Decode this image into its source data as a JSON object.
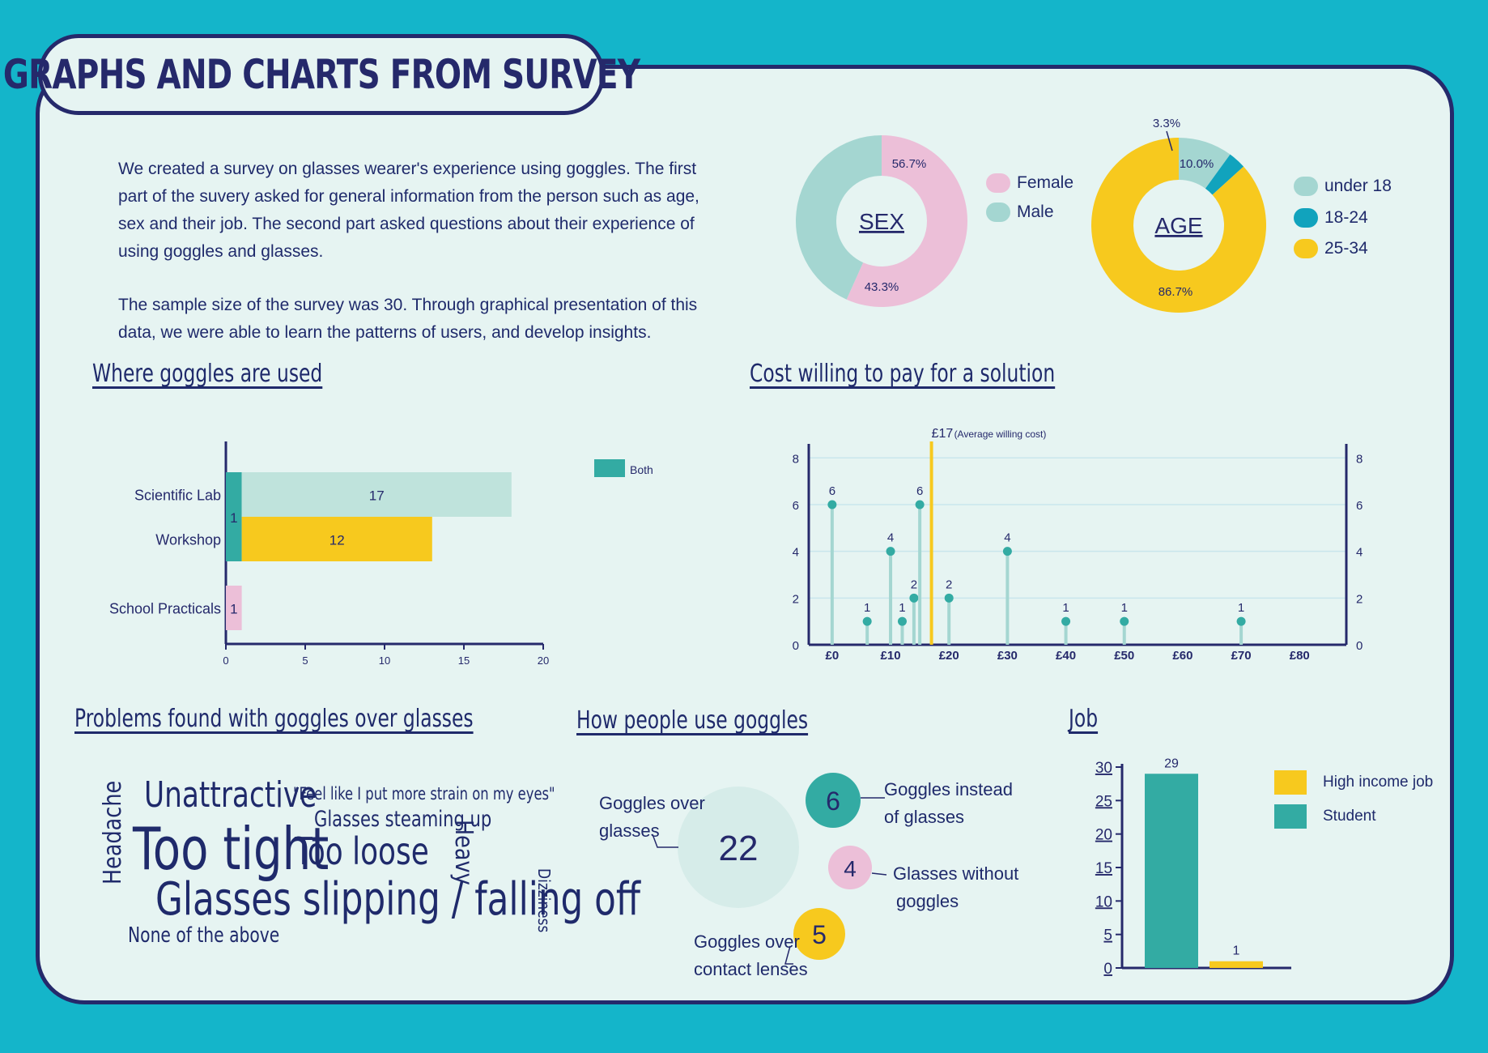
{
  "title": "GRAPHS AND CHARTS FROM SURVEY",
  "intro": {
    "p1": "We created a survey on glasses wearer's experience using goggles. The first part of the suvery asked for general information from the person such as age, sex and their job. The second part asked questions about their experience of using goggles and glasses.",
    "p2": "The sample size of the survey was 30. Through graphical presentation of this data, we were able to learn the patterns of users, and develop insights."
  },
  "colors": {
    "background": "#14b5ca",
    "board": "#e6f4f2",
    "navy": "#25296b",
    "pink": "#ecbfd8",
    "mint": "#a4d6d1",
    "teal": "#33aba3",
    "yellow": "#f7c91e",
    "cyan": "#11a3bd",
    "lightmint": "#bfe3dc"
  },
  "chart_data": [
    {
      "type": "pie",
      "title": "SEX",
      "donut": true,
      "labels": [
        "Female",
        "Male"
      ],
      "values": [
        56.7,
        43.3
      ],
      "value_labels": [
        "56.7%",
        "43.3%"
      ],
      "colors": [
        "#ecbfd8",
        "#a4d6d1"
      ],
      "legend": "right"
    },
    {
      "type": "pie",
      "title": "AGE",
      "donut": true,
      "labels": [
        "under 18",
        "18-24",
        "25-34"
      ],
      "values": [
        10.0,
        3.3,
        86.7
      ],
      "value_labels": [
        "10.0%",
        "3.3%",
        "86.7%"
      ],
      "colors": [
        "#a4d6d1",
        "#11a3bd",
        "#f7c91e"
      ],
      "legend": "right"
    },
    {
      "type": "bar",
      "orientation": "horizontal",
      "stacked": true,
      "title": "Where goggles are used",
      "categories": [
        "Scientific Lab",
        "Workshop",
        "School Practicals"
      ],
      "series": [
        {
          "name": "Both",
          "values": [
            1,
            1,
            0
          ],
          "color": "#33aba3"
        },
        {
          "values": [
            17,
            12,
            1
          ],
          "colors": [
            "#bfe3dc",
            "#f7c91e",
            "#ecbfd8"
          ]
        }
      ],
      "both_label": "1",
      "xlim": [
        0,
        20
      ],
      "xticks": [
        "0",
        "5",
        "10",
        "15",
        "20"
      ],
      "legend": "top-right"
    },
    {
      "type": "scatter",
      "style": "lollipop",
      "title": "Cost willing to pay for a solution",
      "points": [
        {
          "x": 0,
          "y": 6
        },
        {
          "x": 6,
          "y": 1
        },
        {
          "x": 10,
          "y": 4
        },
        {
          "x": 12,
          "y": 1
        },
        {
          "x": 14,
          "y": 2
        },
        {
          "x": 15,
          "y": 6
        },
        {
          "x": 20,
          "y": 2
        },
        {
          "x": 30,
          "y": 4
        },
        {
          "x": 40,
          "y": 1
        },
        {
          "x": 50,
          "y": 1
        },
        {
          "x": 70,
          "y": 1
        }
      ],
      "reference_line": {
        "x": 17,
        "label": "£17",
        "note": "(Average willing cost)"
      },
      "xlim": [
        -4,
        88
      ],
      "ylim": [
        0,
        8.6
      ],
      "xticks": [
        {
          "v": 0,
          "l": "£0"
        },
        {
          "v": 10,
          "l": "£10"
        },
        {
          "v": 20,
          "l": "£20"
        },
        {
          "v": 30,
          "l": "£30"
        },
        {
          "v": 40,
          "l": "£40"
        },
        {
          "v": 50,
          "l": "£50"
        },
        {
          "v": 60,
          "l": "£60"
        },
        {
          "v": 70,
          "l": "£70"
        },
        {
          "v": 80,
          "l": "£80"
        }
      ],
      "yticks": [
        "0",
        "2",
        "4",
        "6",
        "8"
      ],
      "grid": true
    },
    {
      "type": "bar",
      "title": "Job",
      "categories": [
        "Student",
        "High income job"
      ],
      "values": [
        29,
        1
      ],
      "colors": [
        "#33aba3",
        "#f7c91e"
      ],
      "ylim": [
        0,
        30
      ],
      "yticks": [
        "0",
        "5",
        "10",
        "15",
        "20",
        "25",
        "30"
      ],
      "legend": [
        "High income job",
        "Student"
      ],
      "legend_placement": "right"
    }
  ],
  "sections": {
    "where": "Where goggles are used",
    "cost": "Cost willing to pay for a solution",
    "problems": "Problems found with goggles over glasses",
    "how": "How people use goggles",
    "job": "Job"
  },
  "wordcloud": [
    {
      "text": "Unattractive",
      "color": "#33aba3"
    },
    {
      "text": "\"Feel like I put more strain on my eyes\"",
      "color": "#f2b3cf"
    },
    {
      "text": "Glasses steaming up",
      "color": "#6f8ec9"
    },
    {
      "text": "Headache",
      "color": "#b07ab8"
    },
    {
      "text": "Too tight",
      "color": "#11a3bd"
    },
    {
      "text": "Too loose",
      "color": "#a4d6d1"
    },
    {
      "text": "Heavy",
      "color": "#f7dc7a"
    },
    {
      "text": "Glasses slipping / falling off",
      "color": "#f7c91e"
    },
    {
      "text": "Dizziness",
      "color": "#d9a8d0"
    },
    {
      "text": "None of the above",
      "color": "#b9d6f0"
    }
  ],
  "bubbles": [
    {
      "value": 22,
      "label": "Goggles over glasses",
      "color": "#d6ece9"
    },
    {
      "value": 6,
      "label": "Goggles instead of glasses",
      "color": "#33aba3"
    },
    {
      "value": 4,
      "label": "Glasses without goggles",
      "color": "#ecbfd8"
    },
    {
      "value": 5,
      "label": "Goggles over contact lenses",
      "color": "#f7c91e"
    }
  ],
  "labels": {
    "goggles_over_glasses_1": "Goggles over",
    "goggles_over_glasses_2": "glasses",
    "instead_1": "Goggles instead",
    "instead_2": "of glasses",
    "without_1": "Glasses without",
    "without_2": "goggles",
    "contact_1": "Goggles over",
    "contact_2": "contact lenses"
  }
}
